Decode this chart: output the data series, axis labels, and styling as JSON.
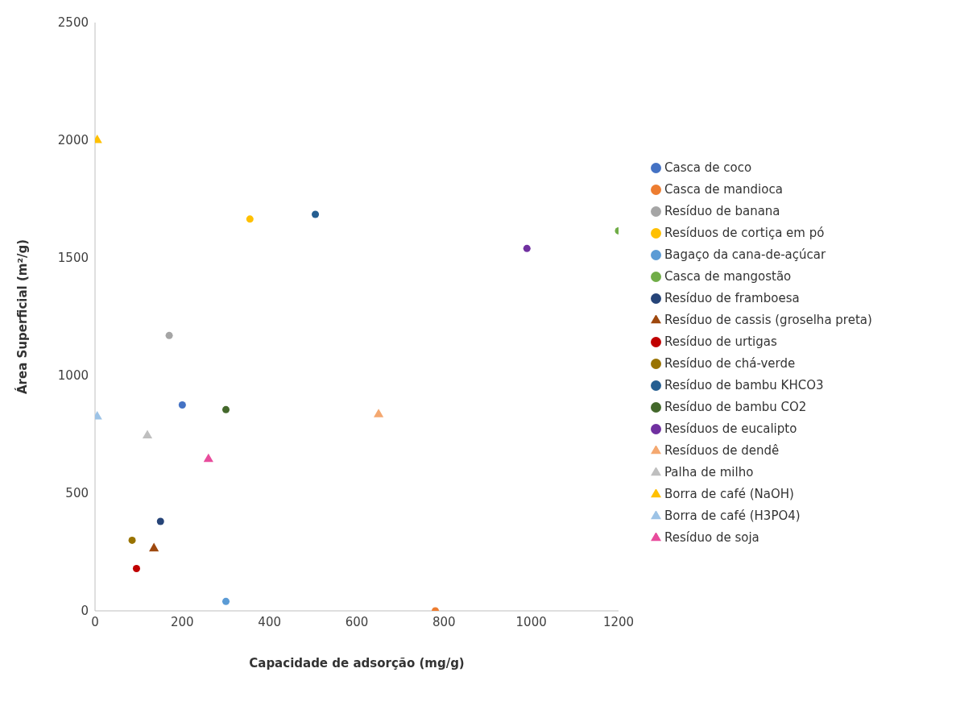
{
  "chart_data": {
    "type": "scatter",
    "xlabel": "Capacidade de adsorção (mg/g)",
    "ylabel": "Área Superficial (m²/g)",
    "xlim": [
      0,
      1200
    ],
    "xticks": [
      0,
      200,
      400,
      600,
      800,
      1000,
      1200
    ],
    "ylim": [
      0,
      2500
    ],
    "yticks": [
      0,
      500,
      1000,
      1500,
      2000,
      2500
    ],
    "grid": false,
    "legend": "right",
    "series": [
      {
        "name": "Casca de coco",
        "color": "#4472c4",
        "marker": "circle",
        "x": [
          200
        ],
        "values": [
          875
        ]
      },
      {
        "name": "Casca de mandioca",
        "color": "#ed7d31",
        "marker": "circle",
        "x": [
          780
        ],
        "values": [
          0
        ]
      },
      {
        "name": "Resíduo de banana",
        "color": "#a5a5a5",
        "marker": "circle",
        "x": [
          170
        ],
        "values": [
          1170
        ]
      },
      {
        "name": "Resíduos de cortiça em pó",
        "color": "#ffc000",
        "marker": "circle",
        "x": [
          355
        ],
        "values": [
          1665
        ]
      },
      {
        "name": "Bagaço da cana-de-açúcar",
        "color": "#5b9bd5",
        "marker": "circle",
        "x": [
          300
        ],
        "values": [
          40
        ]
      },
      {
        "name": "Casca de mangostão",
        "color": "#70ad47",
        "marker": "circle",
        "x": [
          1200
        ],
        "values": [
          1615
        ]
      },
      {
        "name": "Resíduo de framboesa",
        "color": "#264478",
        "marker": "circle",
        "x": [
          150
        ],
        "values": [
          380
        ]
      },
      {
        "name": "Resíduo de cassis (groselha preta)",
        "color": "#9e480e",
        "marker": "triangle",
        "x": [
          135
        ],
        "values": [
          265
        ]
      },
      {
        "name": "Resíduo de urtigas",
        "color": "#c00000",
        "marker": "circle",
        "x": [
          95
        ],
        "values": [
          180
        ]
      },
      {
        "name": "Resíduo de chá-verde",
        "color": "#997300",
        "marker": "circle",
        "x": [
          85
        ],
        "values": [
          300
        ]
      },
      {
        "name": "Resíduo de bambu KHCO3",
        "color": "#255e91",
        "marker": "circle",
        "x": [
          505
        ],
        "values": [
          1685
        ]
      },
      {
        "name": "Resíduo de bambu CO2",
        "color": "#43682b",
        "marker": "circle",
        "x": [
          300
        ],
        "values": [
          855
        ]
      },
      {
        "name": "Resíduos de eucalipto",
        "color": "#7030a0",
        "marker": "circle",
        "x": [
          990
        ],
        "values": [
          1540
        ]
      },
      {
        "name": "Resíduos de dendê",
        "color": "#f4a870",
        "marker": "triangle",
        "x": [
          650
        ],
        "values": [
          835
        ]
      },
      {
        "name": "Palha de milho",
        "color": "#bfbfbf",
        "marker": "triangle",
        "x": [
          120
        ],
        "values": [
          745
        ]
      },
      {
        "name": "Borra de café (NaOH)",
        "color": "#ffc000",
        "marker": "triangle",
        "x": [
          5
        ],
        "values": [
          2000
        ]
      },
      {
        "name": "Borra de café (H3PO4)",
        "color": "#9dc3e6",
        "marker": "triangle",
        "x": [
          5
        ],
        "values": [
          825
        ]
      },
      {
        "name": "Resíduo de soja",
        "color": "#e84c9c",
        "marker": "triangle",
        "x": [
          260
        ],
        "values": [
          645
        ]
      }
    ]
  }
}
